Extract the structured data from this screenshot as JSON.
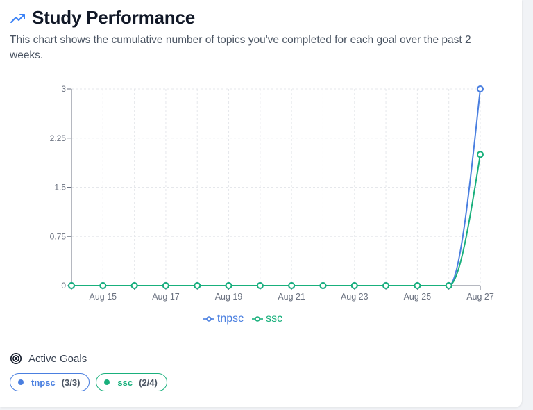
{
  "header": {
    "title": "Study Performance",
    "icon": "trending-up-icon"
  },
  "subtitle": "This chart shows the cumulative number of topics you've completed for each goal over the past 2 weeks.",
  "chart_data": {
    "type": "line",
    "x": [
      "Aug 14",
      "Aug 15",
      "Aug 16",
      "Aug 17",
      "Aug 18",
      "Aug 19",
      "Aug 20",
      "Aug 21",
      "Aug 22",
      "Aug 23",
      "Aug 24",
      "Aug 25",
      "Aug 26",
      "Aug 27"
    ],
    "x_tick_labels": [
      "Aug 15",
      "Aug 17",
      "Aug 19",
      "Aug 21",
      "Aug 23",
      "Aug 25",
      "Aug 27"
    ],
    "y_ticks": [
      "0",
      "0.75",
      "1.5",
      "2.25",
      "3"
    ],
    "ylim": [
      0,
      3
    ],
    "grid": true,
    "legend_position": "bottom",
    "series": [
      {
        "name": "tnpsc",
        "color": "#4a7fe0",
        "values": [
          0,
          0,
          0,
          0,
          0,
          0,
          0,
          0,
          0,
          0,
          0,
          0,
          0,
          3
        ]
      },
      {
        "name": "ssc",
        "color": "#19b07c",
        "values": [
          0,
          0,
          0,
          0,
          0,
          0,
          0,
          0,
          0,
          0,
          0,
          0,
          0,
          2
        ]
      }
    ]
  },
  "active_goals": {
    "title": "Active Goals",
    "icon": "target-icon",
    "goals": [
      {
        "name": "tnpsc",
        "progress": "(3/3)",
        "color": "#4a7fe0"
      },
      {
        "name": "ssc",
        "progress": "(2/4)",
        "color": "#19b07c"
      }
    ]
  }
}
